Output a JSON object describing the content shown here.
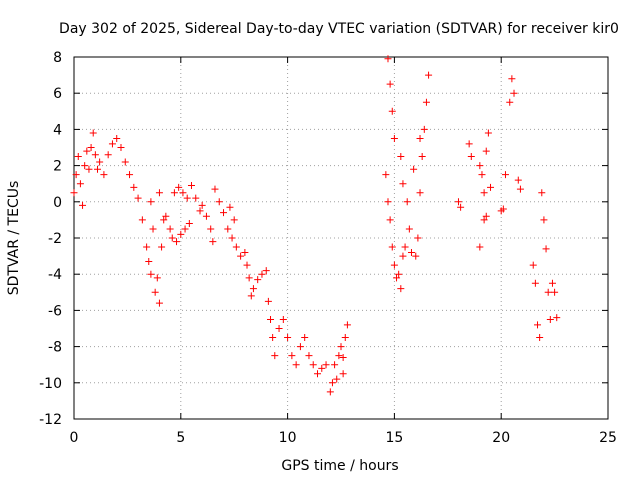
{
  "chart_data": {
    "type": "scatter",
    "title": "Day 302 of 2025, Sidereal Day-to-day VTEC variation (SDTVAR) for receiver kir0",
    "xlabel": "GPS time / hours",
    "ylabel": "SDTVAR / TECUs",
    "xlim": [
      0,
      25
    ],
    "ylim": [
      -12,
      8
    ],
    "xticks": [
      0,
      5,
      10,
      15,
      20,
      25
    ],
    "yticks": [
      -12,
      -10,
      -8,
      -6,
      -4,
      -2,
      0,
      2,
      4,
      6,
      8
    ],
    "grid": true,
    "marker": "plus",
    "color": "#ff0000",
    "series": [
      {
        "name": "SDTVAR",
        "points": [
          [
            0.0,
            0.5
          ],
          [
            0.1,
            1.5
          ],
          [
            0.2,
            2.5
          ],
          [
            0.3,
            1.0
          ],
          [
            0.4,
            -0.2
          ],
          [
            0.5,
            2.0
          ],
          [
            0.6,
            2.8
          ],
          [
            0.7,
            1.8
          ],
          [
            0.8,
            3.0
          ],
          [
            0.9,
            3.8
          ],
          [
            1.0,
            2.6
          ],
          [
            1.1,
            1.8
          ],
          [
            1.2,
            2.2
          ],
          [
            1.4,
            1.5
          ],
          [
            1.6,
            2.6
          ],
          [
            1.8,
            3.2
          ],
          [
            2.0,
            3.5
          ],
          [
            2.2,
            3.0
          ],
          [
            2.4,
            2.2
          ],
          [
            2.6,
            1.5
          ],
          [
            2.8,
            0.8
          ],
          [
            3.0,
            0.2
          ],
          [
            3.2,
            -1.0
          ],
          [
            3.4,
            -2.5
          ],
          [
            3.6,
            -4.0
          ],
          [
            3.8,
            -5.0
          ],
          [
            3.5,
            -3.3
          ],
          [
            3.7,
            -1.5
          ],
          [
            4.0,
            -5.6
          ],
          [
            3.9,
            -4.2
          ],
          [
            4.1,
            -2.5
          ],
          [
            4.2,
            -1.0
          ],
          [
            4.0,
            0.5
          ],
          [
            3.6,
            0.0
          ],
          [
            4.3,
            -0.8
          ],
          [
            4.5,
            -1.5
          ],
          [
            4.6,
            -2.0
          ],
          [
            4.8,
            -2.2
          ],
          [
            5.0,
            -1.8
          ],
          [
            5.2,
            -1.5
          ],
          [
            5.4,
            -1.2
          ],
          [
            4.7,
            0.5
          ],
          [
            4.9,
            0.8
          ],
          [
            5.1,
            0.5
          ],
          [
            5.3,
            0.2
          ],
          [
            5.5,
            0.9
          ],
          [
            5.7,
            0.2
          ],
          [
            5.9,
            -0.5
          ],
          [
            6.0,
            -0.2
          ],
          [
            6.2,
            -0.8
          ],
          [
            6.4,
            -1.5
          ],
          [
            6.5,
            -2.2
          ],
          [
            6.6,
            0.7
          ],
          [
            6.8,
            0.0
          ],
          [
            7.0,
            -0.6
          ],
          [
            7.2,
            -1.5
          ],
          [
            7.4,
            -2.0
          ],
          [
            7.5,
            -1.0
          ],
          [
            7.3,
            -0.3
          ],
          [
            7.6,
            -2.5
          ],
          [
            7.8,
            -3.0
          ],
          [
            8.0,
            -2.8
          ],
          [
            8.1,
            -3.5
          ],
          [
            8.2,
            -4.2
          ],
          [
            8.4,
            -4.8
          ],
          [
            8.3,
            -5.2
          ],
          [
            8.6,
            -4.3
          ],
          [
            8.8,
            -4.0
          ],
          [
            9.0,
            -3.8
          ],
          [
            9.1,
            -5.5
          ],
          [
            9.2,
            -6.5
          ],
          [
            9.3,
            -7.5
          ],
          [
            9.4,
            -8.5
          ],
          [
            9.6,
            -7.0
          ],
          [
            9.8,
            -6.5
          ],
          [
            10.0,
            -7.5
          ],
          [
            10.2,
            -8.5
          ],
          [
            10.4,
            -9.0
          ],
          [
            10.6,
            -8.0
          ],
          [
            10.8,
            -7.5
          ],
          [
            11.0,
            -8.5
          ],
          [
            11.2,
            -9.0
          ],
          [
            11.4,
            -9.5
          ],
          [
            11.6,
            -9.2
          ],
          [
            11.8,
            -9.0
          ],
          [
            12.0,
            -10.5
          ],
          [
            12.1,
            -10.0
          ],
          [
            12.2,
            -9.0
          ],
          [
            12.4,
            -8.5
          ],
          [
            12.5,
            -8.0
          ],
          [
            12.6,
            -9.5
          ],
          [
            12.7,
            -7.5
          ],
          [
            12.8,
            -6.8
          ],
          [
            12.6,
            -8.6
          ],
          [
            12.3,
            -9.8
          ],
          [
            14.7,
            7.9
          ],
          [
            14.8,
            6.5
          ],
          [
            14.9,
            5.0
          ],
          [
            15.0,
            3.5
          ],
          [
            14.6,
            1.5
          ],
          [
            14.7,
            0.0
          ],
          [
            14.8,
            -1.0
          ],
          [
            14.9,
            -2.5
          ],
          [
            15.0,
            -3.5
          ],
          [
            15.1,
            -4.2
          ],
          [
            15.2,
            -4.0
          ],
          [
            15.3,
            -4.8
          ],
          [
            15.4,
            -3.0
          ],
          [
            15.5,
            -2.5
          ],
          [
            15.3,
            2.5
          ],
          [
            15.4,
            1.0
          ],
          [
            15.6,
            0.0
          ],
          [
            15.7,
            -1.5
          ],
          [
            15.8,
            -2.8
          ],
          [
            16.0,
            -3.0
          ],
          [
            16.1,
            -2.0
          ],
          [
            16.2,
            0.5
          ],
          [
            16.3,
            2.5
          ],
          [
            16.4,
            4.0
          ],
          [
            16.5,
            5.5
          ],
          [
            16.6,
            7.0
          ],
          [
            16.2,
            3.5
          ],
          [
            15.9,
            1.8
          ],
          [
            18.0,
            0.0
          ],
          [
            18.1,
            -0.3
          ],
          [
            18.5,
            3.2
          ],
          [
            18.6,
            2.5
          ],
          [
            19.0,
            2.0
          ],
          [
            19.1,
            1.5
          ],
          [
            19.2,
            0.5
          ],
          [
            19.3,
            2.8
          ],
          [
            19.4,
            3.8
          ],
          [
            19.2,
            -1.0
          ],
          [
            19.0,
            -2.5
          ],
          [
            19.3,
            -0.8
          ],
          [
            19.5,
            0.8
          ],
          [
            20.0,
            -0.5
          ],
          [
            20.1,
            -0.4
          ],
          [
            20.2,
            1.5
          ],
          [
            20.4,
            5.5
          ],
          [
            20.5,
            6.8
          ],
          [
            20.6,
            6.0
          ],
          [
            20.8,
            1.2
          ],
          [
            20.9,
            0.7
          ],
          [
            21.5,
            -3.5
          ],
          [
            21.6,
            -4.5
          ],
          [
            21.7,
            -6.8
          ],
          [
            21.8,
            -7.5
          ],
          [
            21.9,
            0.5
          ],
          [
            22.0,
            -1.0
          ],
          [
            22.1,
            -2.6
          ],
          [
            22.2,
            -5.0
          ],
          [
            22.3,
            -6.5
          ],
          [
            22.4,
            -4.5
          ],
          [
            22.5,
            -5.0
          ],
          [
            22.6,
            -6.4
          ]
        ]
      }
    ]
  }
}
